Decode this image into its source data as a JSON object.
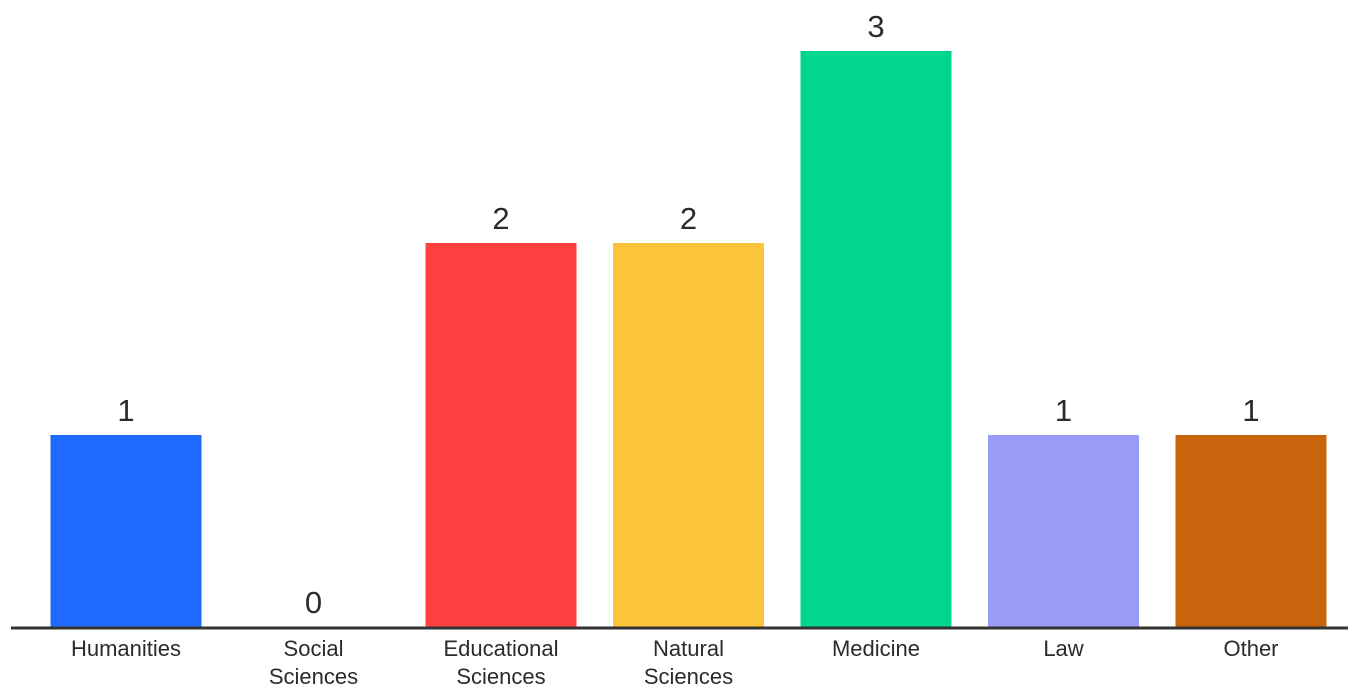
{
  "chart_data": {
    "type": "bar",
    "categories": [
      [
        "Humanities"
      ],
      [
        "Social",
        "Sciences"
      ],
      [
        "Educational",
        "Sciences"
      ],
      [
        "Natural",
        "Sciences"
      ],
      [
        "Medicine"
      ],
      [
        "Law"
      ],
      [
        "Other"
      ]
    ],
    "values": [
      1,
      0,
      2,
      2,
      3,
      1,
      1
    ],
    "colors": [
      "#1f6bff",
      "#9aa5f5",
      "#ff4040",
      "#fcc43a",
      "#00d68f",
      "#989cf5",
      "#c8640c"
    ],
    "ylim": [
      0,
      3
    ],
    "grid": false,
    "legend": "none",
    "axis_color": "#333333",
    "text_color": "#2b2b2b"
  }
}
